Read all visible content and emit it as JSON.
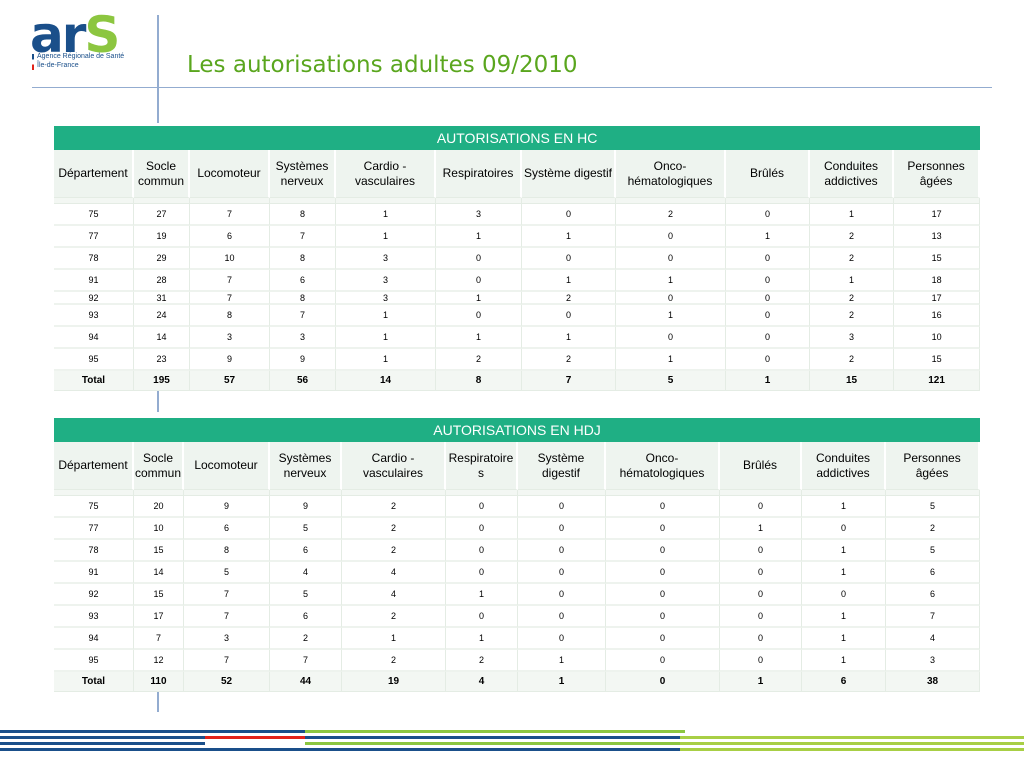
{
  "logo": {
    "brand_a": "ar",
    "brand_s": "S",
    "subtitle_line1": "Agence Régionale de Santé",
    "subtitle_line2": "Île-de-France"
  },
  "title": "Les autorisations adultes   09/2010",
  "colors": {
    "title": "#5aa61e",
    "band": "#1faf84",
    "rule": "#93acd0",
    "logo_blue": "#1a4f8a",
    "logo_green": "#8cc640"
  },
  "columns": [
    "Département",
    "Socle commun",
    "Locomoteur",
    "Systèmes nerveux",
    "Cardio -vasculaires",
    "Respiratoires",
    "Système digestif",
    "Onco-hématologiques",
    "Brûlés",
    "Conduites addictives",
    "Personnes âgées"
  ],
  "hc": {
    "band": "AUTORISATIONS EN HC",
    "headers": [
      "Département",
      "Socle commun",
      "Locomoteur",
      "Systèmes nerveux",
      "Cardio -vasculaires",
      "Respiratoires",
      "Système digestif",
      "Onco-hématologiques",
      "Brûlés",
      "Conduites addictives",
      "Personnes âgées"
    ],
    "rows": [
      [
        "75",
        "27",
        "7",
        "8",
        "1",
        "3",
        "0",
        "2",
        "0",
        "1",
        "17"
      ],
      [
        "77",
        "19",
        "6",
        "7",
        "1",
        "1",
        "1",
        "0",
        "1",
        "2",
        "13"
      ],
      [
        "78",
        "29",
        "10",
        "8",
        "3",
        "0",
        "0",
        "0",
        "0",
        "2",
        "15"
      ],
      [
        "91",
        "28",
        "7",
        "6",
        "3",
        "0",
        "1",
        "1",
        "0",
        "1",
        "18"
      ],
      [
        "92",
        "31",
        "7",
        "8",
        "3",
        "1",
        "2",
        "0",
        "0",
        "2",
        "17"
      ],
      [
        "93",
        "24",
        "8",
        "7",
        "1",
        "0",
        "0",
        "1",
        "0",
        "2",
        "16"
      ],
      [
        "94",
        "14",
        "3",
        "3",
        "1",
        "1",
        "1",
        "0",
        "0",
        "3",
        "10"
      ],
      [
        "95",
        "23",
        "9",
        "9",
        "1",
        "2",
        "2",
        "1",
        "0",
        "2",
        "15"
      ]
    ],
    "total": [
      "Total",
      "195",
      "57",
      "56",
      "14",
      "8",
      "7",
      "5",
      "1",
      "15",
      "121"
    ]
  },
  "hdj": {
    "band": "AUTORISATIONS EN HDJ",
    "headers": [
      "Département",
      "Socle commun",
      "Locomoteur",
      "Systèmes nerveux",
      "Cardio -vasculaires",
      "Respiratoire s",
      "Système digestif",
      "Onco-hématologiques",
      "Brûlés",
      "Conduites addictives",
      "Personnes âgées"
    ],
    "rows": [
      [
        "75",
        "20",
        "9",
        "9",
        "2",
        "0",
        "0",
        "0",
        "0",
        "1",
        "5"
      ],
      [
        "77",
        "10",
        "6",
        "5",
        "2",
        "0",
        "0",
        "0",
        "1",
        "0",
        "2"
      ],
      [
        "78",
        "15",
        "8",
        "6",
        "2",
        "0",
        "0",
        "0",
        "0",
        "1",
        "5"
      ],
      [
        "91",
        "14",
        "5",
        "4",
        "4",
        "0",
        "0",
        "0",
        "0",
        "1",
        "6"
      ],
      [
        "92",
        "15",
        "7",
        "5",
        "4",
        "1",
        "0",
        "0",
        "0",
        "0",
        "6"
      ],
      [
        "93",
        "17",
        "7",
        "6",
        "2",
        "0",
        "0",
        "0",
        "0",
        "1",
        "7"
      ],
      [
        "94",
        "7",
        "3",
        "2",
        "1",
        "1",
        "0",
        "0",
        "0",
        "1",
        "4"
      ],
      [
        "95",
        "12",
        "7",
        "7",
        "2",
        "2",
        "1",
        "0",
        "0",
        "1",
        "3"
      ]
    ],
    "total": [
      "Total",
      "110",
      "52",
      "44",
      "19",
      "4",
      "1",
      "0",
      "1",
      "6",
      "38"
    ]
  }
}
